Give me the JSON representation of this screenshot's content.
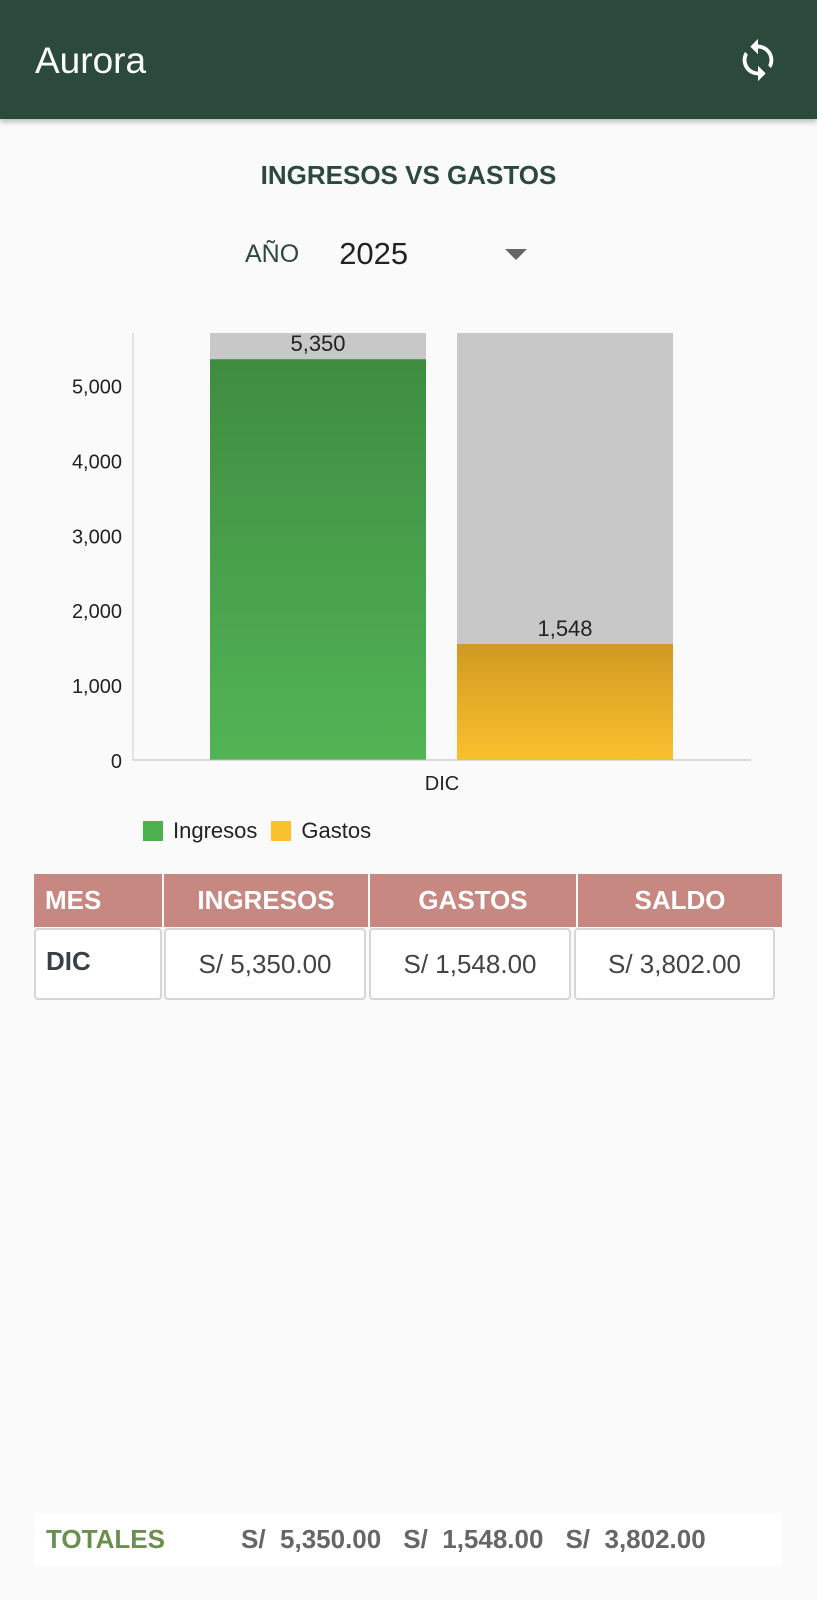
{
  "app": {
    "title": "Aurora",
    "refresh_icon": "refresh-icon"
  },
  "section_title": "INGRESOS VS GASTOS",
  "year_filter": {
    "label": "AÑO",
    "selected": "2025"
  },
  "colors": {
    "appbar": "#2c4a3b",
    "ingresos": "#4caf50",
    "gastos": "#fbc02d",
    "header": "#c68881",
    "bar_background": "#c8c8c8"
  },
  "chart_data": {
    "type": "bar",
    "categories": [
      "DIC"
    ],
    "series": [
      {
        "name": "Ingresos",
        "values": [
          5350
        ],
        "labels": [
          "5,350"
        ]
      },
      {
        "name": "Gastos",
        "values": [
          1548
        ],
        "labels": [
          "1,548"
        ]
      }
    ],
    "ylim": [
      0,
      5700
    ],
    "yticks": [
      0,
      1000,
      2000,
      3000,
      4000,
      5000
    ],
    "ytick_labels": [
      "0",
      "1,000",
      "2,000",
      "3,000",
      "4,000",
      "5,000"
    ],
    "legend": "bottom-left",
    "grid": false
  },
  "table": {
    "headers": [
      "MES",
      "INGRESOS",
      "GASTOS",
      "SALDO"
    ],
    "rows": [
      [
        "DIC",
        "S/ 5,350.00",
        "S/ 1,548.00",
        "S/ 3,802.00"
      ]
    ]
  },
  "totals": {
    "label": "TOTALES",
    "ingresos": "S/  5,350.00",
    "gastos": "S/  1,548.00",
    "saldo": "S/  3,802.00"
  }
}
